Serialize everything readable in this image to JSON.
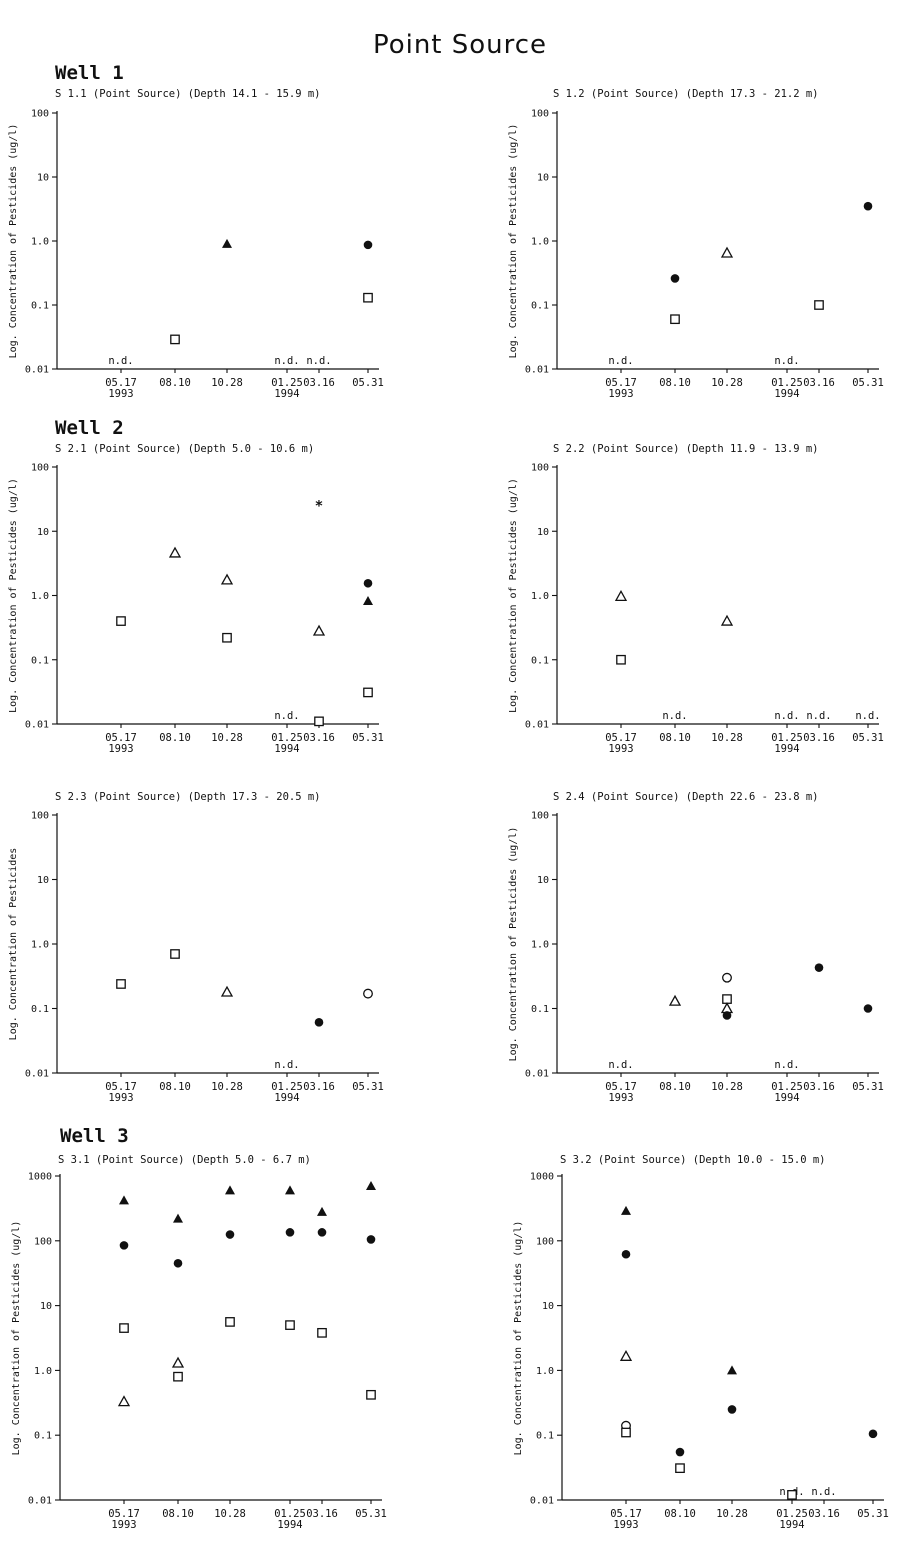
{
  "page_title": "Point Source",
  "wells": [
    "Well 1",
    "Well 2",
    "Well 3"
  ],
  "chart_data": [
    {
      "type": "scatter",
      "title": "S 1.1 (Point Source) (Depth 14.1 - 15.9 m)",
      "ylabel": "Log. Concentration of Pesticides (ug/l)",
      "xlabel": "",
      "yscale": "log",
      "ylim": [
        0.01,
        100
      ],
      "yticks": [
        "0.01",
        "0.1",
        "1.0",
        "10",
        "100"
      ],
      "xticks": [
        "05.17",
        "08.10",
        "10.28",
        "01.25",
        "03.16",
        "05.31"
      ],
      "year_labels": [
        "1993",
        "",
        "",
        "1994",
        "",
        ""
      ],
      "points": [
        {
          "x": "08.10",
          "y": 0.029,
          "marker": "square-open"
        },
        {
          "x": "10.28",
          "y": 0.9,
          "marker": "triangle-filled"
        },
        {
          "x": "05.31",
          "y": 0.87,
          "marker": "circle-filled"
        },
        {
          "x": "05.31",
          "y": 0.13,
          "marker": "square-open"
        }
      ],
      "nd": [
        "05.17",
        "01.25",
        "03.16"
      ]
    },
    {
      "type": "scatter",
      "title": "S 1.2 (Point Source) (Depth 17.3 - 21.2 m)",
      "ylabel": "Log. Concentration of Pesticides (ug/l)",
      "xlabel": "",
      "yscale": "log",
      "ylim": [
        0.01,
        100
      ],
      "yticks": [
        "0.01",
        "0.1",
        "1.0",
        "10",
        "100"
      ],
      "xticks": [
        "05.17",
        "08.10",
        "10.28",
        "01.25",
        "03.16",
        "05.31"
      ],
      "year_labels": [
        "1993",
        "",
        "",
        "1994",
        "",
        ""
      ],
      "points": [
        {
          "x": "08.10",
          "y": 0.26,
          "marker": "circle-filled"
        },
        {
          "x": "08.10",
          "y": 0.06,
          "marker": "square-open"
        },
        {
          "x": "10.28",
          "y": 0.65,
          "marker": "triangle-open"
        },
        {
          "x": "03.16",
          "y": 0.1,
          "marker": "square-open"
        },
        {
          "x": "05.31",
          "y": 3.5,
          "marker": "circle-filled"
        }
      ],
      "nd": [
        "05.17",
        "01.25"
      ]
    },
    {
      "type": "scatter",
      "title": "S 2.1 (Point Source) (Depth 5.0 - 10.6 m)",
      "ylabel": "Log. Concentration of Pesticides (ug/l)",
      "xlabel": "",
      "yscale": "log",
      "ylim": [
        0.01,
        100
      ],
      "yticks": [
        "0.01",
        "0.1",
        "1.0",
        "10",
        "100"
      ],
      "xticks": [
        "05.17",
        "08.10",
        "10.28",
        "01.25",
        "03.16",
        "05.31"
      ],
      "year_labels": [
        "1993",
        "",
        "",
        "1994",
        "",
        ""
      ],
      "points": [
        {
          "x": "05.17",
          "y": 0.4,
          "marker": "square-open"
        },
        {
          "x": "08.10",
          "y": 4.6,
          "marker": "triangle-open"
        },
        {
          "x": "10.28",
          "y": 1.75,
          "marker": "triangle-open"
        },
        {
          "x": "10.28",
          "y": 0.22,
          "marker": "square-open"
        },
        {
          "x": "03.16",
          "y": 25,
          "marker": "star"
        },
        {
          "x": "03.16",
          "y": 0.28,
          "marker": "triangle-open"
        },
        {
          "x": "03.16",
          "y": 0.011,
          "marker": "square-open"
        },
        {
          "x": "05.31",
          "y": 1.55,
          "marker": "circle-filled"
        },
        {
          "x": "05.31",
          "y": 0.82,
          "marker": "triangle-filled"
        },
        {
          "x": "05.31",
          "y": 0.031,
          "marker": "square-open"
        }
      ],
      "nd": [
        "01.25"
      ]
    },
    {
      "type": "scatter",
      "title": "S 2.2 (Point Source) (Depth 11.9 - 13.9 m)",
      "ylabel": "Log. Concentration of Pesticides (ug/l)",
      "xlabel": "",
      "yscale": "log",
      "ylim": [
        0.01,
        100
      ],
      "yticks": [
        "0.01",
        "0.1",
        "1.0",
        "10",
        "100"
      ],
      "xticks": [
        "05.17",
        "08.10",
        "10.28",
        "01.25",
        "03.16",
        "05.31"
      ],
      "year_labels": [
        "1993",
        "",
        "",
        "1994",
        "",
        ""
      ],
      "points": [
        {
          "x": "05.17",
          "y": 0.97,
          "marker": "triangle-open"
        },
        {
          "x": "05.17",
          "y": 0.1,
          "marker": "square-open"
        },
        {
          "x": "10.28",
          "y": 0.4,
          "marker": "triangle-open"
        }
      ],
      "nd": [
        "08.10",
        "01.25",
        "03.16",
        "05.31"
      ]
    },
    {
      "type": "scatter",
      "title": "S 2.3 (Point Source) (Depth 17.3 - 20.5 m)",
      "ylabel": "Log. Concentration of Pesticides",
      "xlabel": "",
      "yscale": "log",
      "ylim": [
        0.01,
        100
      ],
      "yticks": [
        "0.01",
        "0.1",
        "1.0",
        "10",
        "100"
      ],
      "xticks": [
        "05.17",
        "08.10",
        "10.28",
        "01.25",
        "03.16",
        "05.31"
      ],
      "year_labels": [
        "1993",
        "",
        "",
        "1994",
        "",
        ""
      ],
      "points": [
        {
          "x": "05.17",
          "y": 0.24,
          "marker": "square-open"
        },
        {
          "x": "08.10",
          "y": 0.7,
          "marker": "square-open"
        },
        {
          "x": "10.28",
          "y": 0.18,
          "marker": "triangle-open"
        },
        {
          "x": "03.16",
          "y": 0.061,
          "marker": "circle-filled"
        },
        {
          "x": "05.31",
          "y": 0.17,
          "marker": "circle-open"
        }
      ],
      "nd": [
        "01.25"
      ]
    },
    {
      "type": "scatter",
      "title": "S 2.4 (Point Source) (Depth 22.6 - 23.8 m)",
      "ylabel": "Log. Concentration of Pesticides (ug/l)",
      "xlabel": "",
      "yscale": "log",
      "ylim": [
        0.01,
        100
      ],
      "yticks": [
        "0.01",
        "0.1",
        "1.0",
        "10",
        "100"
      ],
      "xticks": [
        "05.17",
        "08.10",
        "10.28",
        "01.25",
        "03.16",
        "05.31"
      ],
      "year_labels": [
        "1993",
        "",
        "",
        "1994",
        "",
        ""
      ],
      "points": [
        {
          "x": "08.10",
          "y": 0.13,
          "marker": "triangle-open"
        },
        {
          "x": "10.28",
          "y": 0.3,
          "marker": "circle-open"
        },
        {
          "x": "10.28",
          "y": 0.14,
          "marker": "square-open"
        },
        {
          "x": "10.28",
          "y": 0.1,
          "marker": "triangle-open"
        },
        {
          "x": "10.28",
          "y": 0.078,
          "marker": "circle-filled"
        },
        {
          "x": "03.16",
          "y": 0.43,
          "marker": "circle-filled"
        },
        {
          "x": "05.31",
          "y": 0.1,
          "marker": "circle-filled"
        }
      ],
      "nd": [
        "05.17",
        "01.25"
      ]
    },
    {
      "type": "scatter",
      "title": "S 3.1 (Point Source) (Depth 5.0 - 6.7 m)",
      "ylabel": "Log. Concentration of Pesticides (ug/l)",
      "xlabel": "",
      "yscale": "log",
      "ylim": [
        0.01,
        1000
      ],
      "yticks": [
        "0.01",
        "0.1",
        "1.0",
        "10",
        "100",
        "1000"
      ],
      "xticks": [
        "05.17",
        "08.10",
        "10.28",
        "01.25",
        "03.16",
        "05.31"
      ],
      "year_labels": [
        "1993",
        "",
        "",
        "1994",
        "",
        ""
      ],
      "points": [
        {
          "x": "05.17",
          "y": 420,
          "marker": "triangle-filled"
        },
        {
          "x": "05.17",
          "y": 85,
          "marker": "circle-filled"
        },
        {
          "x": "05.17",
          "y": 4.5,
          "marker": "square-open"
        },
        {
          "x": "05.17",
          "y": 0.33,
          "marker": "triangle-open"
        },
        {
          "x": "08.10",
          "y": 220,
          "marker": "triangle-filled"
        },
        {
          "x": "08.10",
          "y": 45,
          "marker": "circle-filled"
        },
        {
          "x": "08.10",
          "y": 1.3,
          "marker": "triangle-open"
        },
        {
          "x": "08.10",
          "y": 0.8,
          "marker": "square-open"
        },
        {
          "x": "10.28",
          "y": 600,
          "marker": "triangle-filled"
        },
        {
          "x": "10.28",
          "y": 125,
          "marker": "circle-filled"
        },
        {
          "x": "10.28",
          "y": 5.6,
          "marker": "square-open"
        },
        {
          "x": "01.25",
          "y": 600,
          "marker": "triangle-filled"
        },
        {
          "x": "01.25",
          "y": 135,
          "marker": "circle-filled"
        },
        {
          "x": "01.25",
          "y": 5.0,
          "marker": "square-open"
        },
        {
          "x": "03.16",
          "y": 280,
          "marker": "triangle-filled"
        },
        {
          "x": "03.16",
          "y": 135,
          "marker": "circle-filled"
        },
        {
          "x": "03.16",
          "y": 3.8,
          "marker": "square-open"
        },
        {
          "x": "05.31",
          "y": 700,
          "marker": "triangle-filled"
        },
        {
          "x": "05.31",
          "y": 105,
          "marker": "circle-filled"
        },
        {
          "x": "05.31",
          "y": 0.42,
          "marker": "square-open"
        }
      ],
      "nd": []
    },
    {
      "type": "scatter",
      "title": "S 3.2 (Point Source) (Depth 10.0 - 15.0 m)",
      "ylabel": "Log. Concentration of Pesticides (ug/l)",
      "xlabel": "",
      "yscale": "log",
      "ylim": [
        0.01,
        1000
      ],
      "yticks": [
        "0.01",
        "0.1",
        "1.0",
        "10",
        "100",
        "1000"
      ],
      "xticks": [
        "05.17",
        "08.10",
        "10.28",
        "01.25",
        "03.16",
        "05.31"
      ],
      "year_labels": [
        "1993",
        "",
        "",
        "1994",
        "",
        ""
      ],
      "points": [
        {
          "x": "05.17",
          "y": 290,
          "marker": "triangle-filled"
        },
        {
          "x": "05.17",
          "y": 62,
          "marker": "circle-filled"
        },
        {
          "x": "05.17",
          "y": 1.65,
          "marker": "triangle-open"
        },
        {
          "x": "05.17",
          "y": 0.14,
          "marker": "circle-open"
        },
        {
          "x": "05.17",
          "y": 0.11,
          "marker": "square-open"
        },
        {
          "x": "08.10",
          "y": 0.055,
          "marker": "circle-filled"
        },
        {
          "x": "08.10",
          "y": 0.031,
          "marker": "square-open"
        },
        {
          "x": "10.28",
          "y": 1.0,
          "marker": "triangle-filled"
        },
        {
          "x": "10.28",
          "y": 0.25,
          "marker": "circle-filled"
        },
        {
          "x": "01.25",
          "y": 0.012,
          "marker": "square-open"
        },
        {
          "x": "05.31",
          "y": 0.105,
          "marker": "circle-filled"
        }
      ],
      "nd": [
        "01.25",
        "03.16"
      ]
    }
  ]
}
